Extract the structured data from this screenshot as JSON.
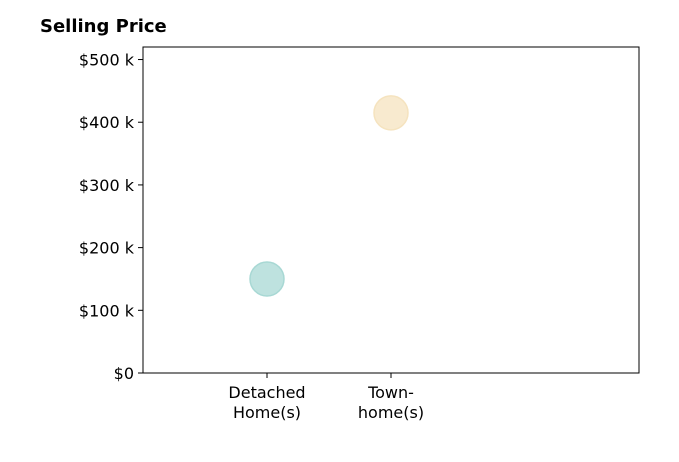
{
  "chart_data": {
    "type": "scatter",
    "title": "Selling Price",
    "categories": [
      "Detached Home(s)",
      "Town-home(s)"
    ],
    "category_label_lines": [
      [
        "Detached",
        "Home(s)"
      ],
      [
        "Town-",
        "home(s)"
      ]
    ],
    "values": [
      150000,
      415000
    ],
    "colors": [
      "#a8d8d4",
      "#f5e3bf"
    ],
    "y_ticks": [
      0,
      100000,
      200000,
      300000,
      400000,
      500000
    ],
    "y_tick_labels": [
      "$0",
      "$100 k",
      "$200 k",
      "$300 k",
      "$400 k",
      "$500 k"
    ],
    "ylim": [
      0,
      520000
    ],
    "xlabel": "",
    "ylabel": "",
    "grid": false,
    "legend": "none"
  }
}
